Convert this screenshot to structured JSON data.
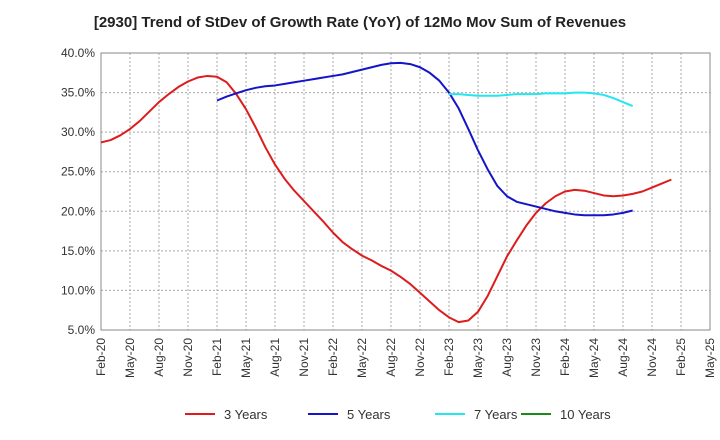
{
  "chart_data": {
    "type": "line",
    "title": "[2930]  Trend of StDev of Growth Rate (YoY) of 12Mo Mov Sum of Revenues",
    "xlabel": "",
    "ylabel": "",
    "ylim": [
      5,
      40
    ],
    "y_ticks": [
      5,
      10,
      15,
      20,
      25,
      30,
      35,
      40
    ],
    "y_tick_labels": [
      "5.0%",
      "10.0%",
      "15.0%",
      "20.0%",
      "25.0%",
      "30.0%",
      "35.0%",
      "40.0%"
    ],
    "x_tick_labels": [
      "Feb-20",
      "May-20",
      "Aug-20",
      "Nov-20",
      "Feb-21",
      "May-21",
      "Aug-21",
      "Nov-21",
      "Feb-22",
      "May-22",
      "Aug-22",
      "Nov-22",
      "Feb-23",
      "May-23",
      "Aug-23",
      "Nov-23",
      "Feb-24",
      "May-24",
      "Aug-24",
      "Nov-24",
      "Feb-25",
      "May-25"
    ],
    "x_range_months": [
      0,
      63
    ],
    "grid": true,
    "legend_position": "bottom",
    "series": [
      {
        "name": "3 Years",
        "color": "#dd1c1c",
        "points": [
          [
            0,
            28.7
          ],
          [
            1,
            29.0
          ],
          [
            2,
            29.6
          ],
          [
            3,
            30.4
          ],
          [
            4,
            31.4
          ],
          [
            5,
            32.6
          ],
          [
            6,
            33.8
          ],
          [
            7,
            34.8
          ],
          [
            8,
            35.7
          ],
          [
            9,
            36.4
          ],
          [
            10,
            36.9
          ],
          [
            11,
            37.1
          ],
          [
            12,
            37.0
          ],
          [
            13,
            36.3
          ],
          [
            14,
            34.8
          ],
          [
            15,
            32.9
          ],
          [
            16,
            30.6
          ],
          [
            17,
            28.1
          ],
          [
            18,
            25.9
          ],
          [
            19,
            24.1
          ],
          [
            20,
            22.6
          ],
          [
            21,
            21.3
          ],
          [
            22,
            20.0
          ],
          [
            23,
            18.7
          ],
          [
            24,
            17.3
          ],
          [
            25,
            16.1
          ],
          [
            26,
            15.2
          ],
          [
            27,
            14.4
          ],
          [
            28,
            13.8
          ],
          [
            29,
            13.1
          ],
          [
            30,
            12.5
          ],
          [
            31,
            11.7
          ],
          [
            32,
            10.8
          ],
          [
            33,
            9.7
          ],
          [
            34,
            8.6
          ],
          [
            35,
            7.5
          ],
          [
            36,
            6.6
          ],
          [
            37,
            6.0
          ],
          [
            38,
            6.2
          ],
          [
            39,
            7.3
          ],
          [
            40,
            9.3
          ],
          [
            41,
            11.8
          ],
          [
            42,
            14.3
          ],
          [
            43,
            16.3
          ],
          [
            44,
            18.2
          ],
          [
            45,
            19.8
          ],
          [
            46,
            21.0
          ],
          [
            47,
            21.9
          ],
          [
            48,
            22.5
          ],
          [
            49,
            22.7
          ],
          [
            50,
            22.6
          ],
          [
            51,
            22.3
          ],
          [
            52,
            22.0
          ],
          [
            53,
            21.9
          ],
          [
            54,
            22.0
          ],
          [
            55,
            22.2
          ],
          [
            56,
            22.5
          ],
          [
            57,
            23.0
          ],
          [
            58,
            23.5
          ],
          [
            59,
            24.0
          ]
        ]
      },
      {
        "name": "5 Years",
        "color": "#1414c8",
        "points": [
          [
            12,
            34.0
          ],
          [
            13,
            34.5
          ],
          [
            14,
            34.9
          ],
          [
            15,
            35.3
          ],
          [
            16,
            35.6
          ],
          [
            17,
            35.8
          ],
          [
            18,
            35.9
          ],
          [
            19,
            36.1
          ],
          [
            20,
            36.3
          ],
          [
            21,
            36.5
          ],
          [
            22,
            36.7
          ],
          [
            23,
            36.9
          ],
          [
            24,
            37.1
          ],
          [
            25,
            37.3
          ],
          [
            26,
            37.6
          ],
          [
            27,
            37.9
          ],
          [
            28,
            38.2
          ],
          [
            29,
            38.5
          ],
          [
            30,
            38.7
          ],
          [
            31,
            38.75
          ],
          [
            32,
            38.6
          ],
          [
            33,
            38.2
          ],
          [
            34,
            37.5
          ],
          [
            35,
            36.5
          ],
          [
            36,
            35.0
          ],
          [
            37,
            33.0
          ],
          [
            38,
            30.4
          ],
          [
            39,
            27.7
          ],
          [
            40,
            25.3
          ],
          [
            41,
            23.2
          ],
          [
            42,
            21.9
          ],
          [
            43,
            21.2
          ],
          [
            44,
            20.9
          ],
          [
            45,
            20.6
          ],
          [
            46,
            20.3
          ],
          [
            47,
            20.0
          ],
          [
            48,
            19.8
          ],
          [
            49,
            19.6
          ],
          [
            50,
            19.5
          ],
          [
            51,
            19.5
          ],
          [
            52,
            19.5
          ],
          [
            53,
            19.6
          ],
          [
            54,
            19.8
          ],
          [
            55,
            20.1
          ]
        ]
      },
      {
        "name": "7 Years",
        "color": "#22e6f0",
        "points": [
          [
            36,
            34.8
          ],
          [
            37,
            34.8
          ],
          [
            38,
            34.7
          ],
          [
            39,
            34.6
          ],
          [
            40,
            34.6
          ],
          [
            41,
            34.6
          ],
          [
            42,
            34.7
          ],
          [
            43,
            34.8
          ],
          [
            44,
            34.8
          ],
          [
            45,
            34.8
          ],
          [
            46,
            34.9
          ],
          [
            47,
            34.9
          ],
          [
            48,
            34.9
          ],
          [
            49,
            35.0
          ],
          [
            50,
            35.0
          ],
          [
            51,
            34.9
          ],
          [
            52,
            34.7
          ],
          [
            53,
            34.3
          ],
          [
            54,
            33.8
          ],
          [
            55,
            33.3
          ]
        ]
      },
      {
        "name": "10 Years",
        "color": "#1a8a1a",
        "points": []
      }
    ]
  }
}
